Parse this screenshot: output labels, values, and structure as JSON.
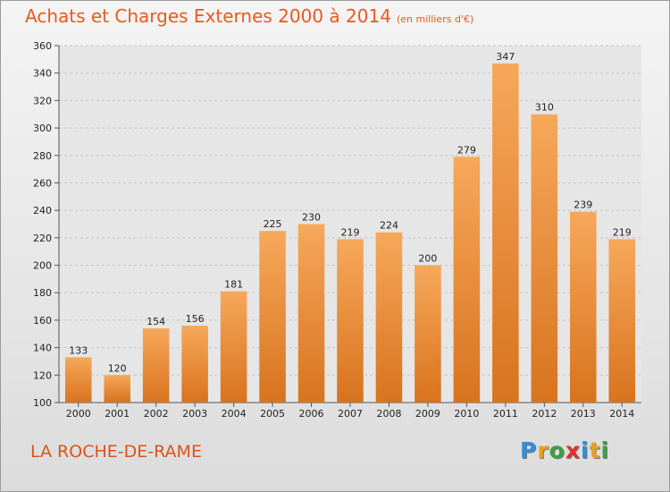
{
  "header": {
    "title": "Achats et Charges Externes 2000 à 2014",
    "unit": "(en milliers d'€)"
  },
  "footer": {
    "place": "LA ROCHE-DE-RAME",
    "logo_letters": [
      {
        "ch": "P",
        "color": "#2f8fd8"
      },
      {
        "ch": "r",
        "color": "#e8a020"
      },
      {
        "ch": "o",
        "color": "#3aa040"
      },
      {
        "ch": "x",
        "color": "#e03030"
      },
      {
        "ch": "i",
        "color": "#2f8fd8"
      },
      {
        "ch": "t",
        "color": "#e8a020"
      },
      {
        "ch": "i",
        "color": "#3aa040"
      }
    ]
  },
  "chart_data": {
    "type": "bar",
    "title": "Achats et Charges Externes 2000 à 2014",
    "subtitle": "(en milliers d'€)",
    "categories": [
      "2000",
      "2001",
      "2002",
      "2003",
      "2004",
      "2005",
      "2006",
      "2007",
      "2008",
      "2009",
      "2010",
      "2011",
      "2012",
      "2013",
      "2014"
    ],
    "values": [
      133,
      120,
      154,
      156,
      181,
      225,
      230,
      219,
      224,
      200,
      279,
      347,
      310,
      239,
      219
    ],
    "ylim": [
      100,
      360
    ],
    "yticks": [
      100,
      120,
      140,
      160,
      180,
      200,
      220,
      240,
      260,
      280,
      300,
      320,
      340,
      360
    ],
    "grid": true,
    "bar_color_top": "#f6a85a",
    "bar_color_bottom": "#d8731e"
  }
}
